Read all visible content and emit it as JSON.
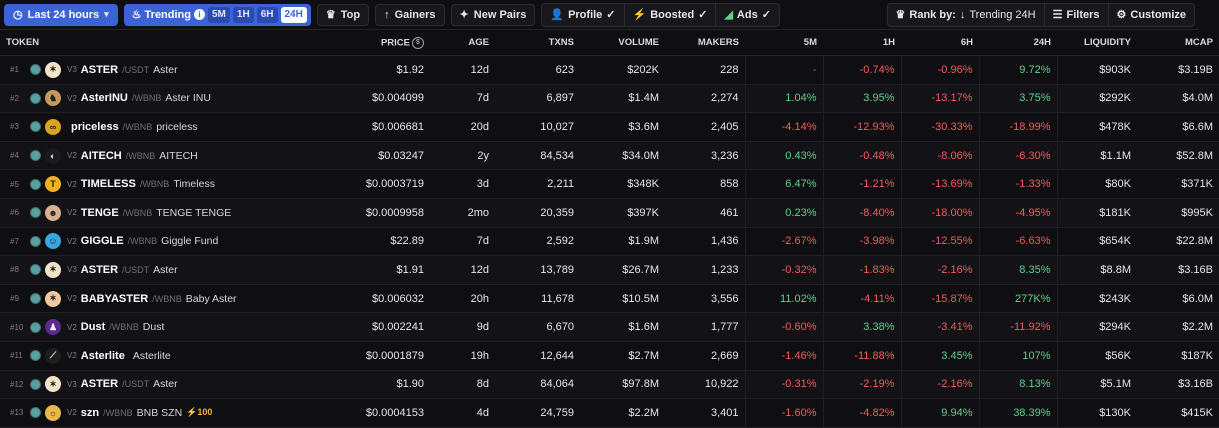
{
  "toolbar": {
    "time_filter": "Last 24 hours",
    "trending_label": "Trending",
    "timeframes": [
      "5M",
      "1H",
      "6H",
      "24H"
    ],
    "active_timeframe": "24H",
    "top": "Top",
    "gainers": "Gainers",
    "new_pairs": "New Pairs",
    "profile": "Profile",
    "boosted": "Boosted",
    "ads": "Ads",
    "rank_by_label": "Rank by:",
    "rank_by_value": "Trending 24H",
    "filters": "Filters",
    "customize": "Customize"
  },
  "columns": {
    "token": "TOKEN",
    "price": "PRICE",
    "age": "AGE",
    "txns": "TXNS",
    "volume": "VOLUME",
    "makers": "MAKERS",
    "m5": "5M",
    "h1": "1H",
    "h6": "6H",
    "h24": "24H",
    "liquidity": "LIQUIDITY",
    "mcap": "MCAP"
  },
  "colors": {
    "accent": "#3b63d6",
    "positive": "#5fd38a",
    "negative": "#f25c5c"
  },
  "rows": [
    {
      "rank": "#1",
      "dex": "V3",
      "symbol": "ASTER",
      "pair": "/USDT",
      "name": "Aster",
      "logo_color": "#f1e2c8",
      "logo_glyph": "✶",
      "price": "$1.92",
      "age": "12d",
      "txns": "623",
      "volume": "$202K",
      "makers": "228",
      "m5": "-",
      "h1": "-0.74%",
      "h6": "-0.96%",
      "h24": "9.72%",
      "liquidity": "$903K",
      "mcap": "$3.19B",
      "boost": ""
    },
    {
      "rank": "#2",
      "dex": "V2",
      "symbol": "AsterINU",
      "pair": "/WBNB",
      "name": "Aster INU",
      "logo_color": "#c79a5a",
      "logo_glyph": "♞",
      "price": "$0.004099",
      "age": "7d",
      "txns": "6,897",
      "volume": "$1.4M",
      "makers": "2,274",
      "m5": "1.04%",
      "h1": "3.95%",
      "h6": "-13.17%",
      "h24": "3.75%",
      "liquidity": "$292K",
      "mcap": "$4.0M",
      "boost": ""
    },
    {
      "rank": "#3",
      "dex": "",
      "symbol": "priceless",
      "pair": "/WBNB",
      "name": "priceless",
      "logo_color": "#d8a520",
      "logo_glyph": "∞",
      "price": "$0.006681",
      "age": "20d",
      "txns": "10,027",
      "volume": "$3.6M",
      "makers": "2,405",
      "m5": "-4.14%",
      "h1": "-12.93%",
      "h6": "-30.33%",
      "h24": "-18.99%",
      "liquidity": "$478K",
      "mcap": "$6.6M",
      "boost": ""
    },
    {
      "rank": "#4",
      "dex": "V2",
      "symbol": "AITECH",
      "pair": "/WBNB",
      "name": "AITECH",
      "logo_color": "#1b1b1b",
      "logo_glyph": "◐",
      "price": "$0.03247",
      "age": "2y",
      "txns": "84,534",
      "volume": "$34.0M",
      "makers": "3,236",
      "m5": "0.43%",
      "h1": "-0.48%",
      "h6": "-8.06%",
      "h24": "-6.30%",
      "liquidity": "$1.1M",
      "mcap": "$52.8M",
      "boost": ""
    },
    {
      "rank": "#5",
      "dex": "V2",
      "symbol": "TIMELESS",
      "pair": "/WBNB",
      "name": "Timeless",
      "logo_color": "#f0b020",
      "logo_glyph": "T",
      "price": "$0.0003719",
      "age": "3d",
      "txns": "2,211",
      "volume": "$348K",
      "makers": "858",
      "m5": "6.47%",
      "h1": "-1.21%",
      "h6": "-13.69%",
      "h24": "-1.33%",
      "liquidity": "$80K",
      "mcap": "$371K",
      "boost": ""
    },
    {
      "rank": "#6",
      "dex": "V2",
      "symbol": "TENGE",
      "pair": "/WBNB",
      "name": "TENGE TENGE",
      "logo_color": "#d9b08c",
      "logo_glyph": "☻",
      "price": "$0.0009958",
      "age": "2mo",
      "txns": "20,359",
      "volume": "$397K",
      "makers": "461",
      "m5": "0.23%",
      "h1": "-8.40%",
      "h6": "-18.00%",
      "h24": "-4.95%",
      "liquidity": "$181K",
      "mcap": "$995K",
      "boost": ""
    },
    {
      "rank": "#7",
      "dex": "V2",
      "symbol": "GIGGLE",
      "pair": "/WBNB",
      "name": "Giggle Fund",
      "logo_color": "#3aa6e0",
      "logo_glyph": "☺",
      "price": "$22.89",
      "age": "7d",
      "txns": "2,592",
      "volume": "$1.9M",
      "makers": "1,436",
      "m5": "-2.67%",
      "h1": "-3.98%",
      "h6": "-12.55%",
      "h24": "-6.63%",
      "liquidity": "$654K",
      "mcap": "$22.8M",
      "boost": ""
    },
    {
      "rank": "#8",
      "dex": "V3",
      "symbol": "ASTER",
      "pair": "/USDT",
      "name": "Aster",
      "logo_color": "#f1e2c8",
      "logo_glyph": "✶",
      "price": "$1.91",
      "age": "12d",
      "txns": "13,789",
      "volume": "$26.7M",
      "makers": "1,233",
      "m5": "-0.32%",
      "h1": "-1.83%",
      "h6": "-2.16%",
      "h24": "8.35%",
      "liquidity": "$8.8M",
      "mcap": "$3.16B",
      "boost": ""
    },
    {
      "rank": "#9",
      "dex": "V2",
      "symbol": "BABYASTER",
      "pair": "/WBNB",
      "name": "Baby Aster",
      "logo_color": "#f1c9a0",
      "logo_glyph": "✶",
      "price": "$0.006032",
      "age": "20h",
      "txns": "11,678",
      "volume": "$10.5M",
      "makers": "3,556",
      "m5": "11.02%",
      "h1": "-4.11%",
      "h6": "-15.87%",
      "h24": "277K%",
      "liquidity": "$243K",
      "mcap": "$6.0M",
      "boost": ""
    },
    {
      "rank": "#10",
      "dex": "V2",
      "symbol": "Dust",
      "pair": "/WBNB",
      "name": "Dust",
      "logo_color": "#5a2a8a",
      "logo_glyph": "♟",
      "price": "$0.002241",
      "age": "9d",
      "txns": "6,670",
      "volume": "$1.6M",
      "makers": "1,777",
      "m5": "-0.60%",
      "h1": "3.38%",
      "h6": "-3.41%",
      "h24": "-11.92%",
      "liquidity": "$294K",
      "mcap": "$2.2M",
      "boost": ""
    },
    {
      "rank": "#11",
      "dex": "V2",
      "symbol": "Asterlite",
      "pair": "",
      "name": "Asterlite",
      "logo_color": "#1e1e1e",
      "logo_glyph": "⟋",
      "price": "$0.0001879",
      "age": "19h",
      "txns": "12,644",
      "volume": "$2.7M",
      "makers": "2,669",
      "m5": "-1.46%",
      "h1": "-11.88%",
      "h6": "3.45%",
      "h24": "107%",
      "liquidity": "$56K",
      "mcap": "$187K",
      "boost": ""
    },
    {
      "rank": "#12",
      "dex": "V3",
      "symbol": "ASTER",
      "pair": "/USDT",
      "name": "Aster",
      "logo_color": "#f1e2c8",
      "logo_glyph": "✶",
      "price": "$1.90",
      "age": "8d",
      "txns": "84,064",
      "volume": "$97.8M",
      "makers": "10,922",
      "m5": "-0.31%",
      "h1": "-2.19%",
      "h6": "-2.16%",
      "h24": "8.13%",
      "liquidity": "$5.1M",
      "mcap": "$3.16B",
      "boost": ""
    },
    {
      "rank": "#13",
      "dex": "V2",
      "symbol": "szn",
      "pair": "/WBNB",
      "name": "BNB SZN",
      "logo_color": "#e8b84a",
      "logo_glyph": "☼",
      "price": "$0.0004153",
      "age": "4d",
      "txns": "24,759",
      "volume": "$2.2M",
      "makers": "3,401",
      "m5": "-1.60%",
      "h1": "-4.82%",
      "h6": "9.94%",
      "h24": "38.39%",
      "liquidity": "$130K",
      "mcap": "$415K",
      "boost": "⚡100"
    }
  ]
}
